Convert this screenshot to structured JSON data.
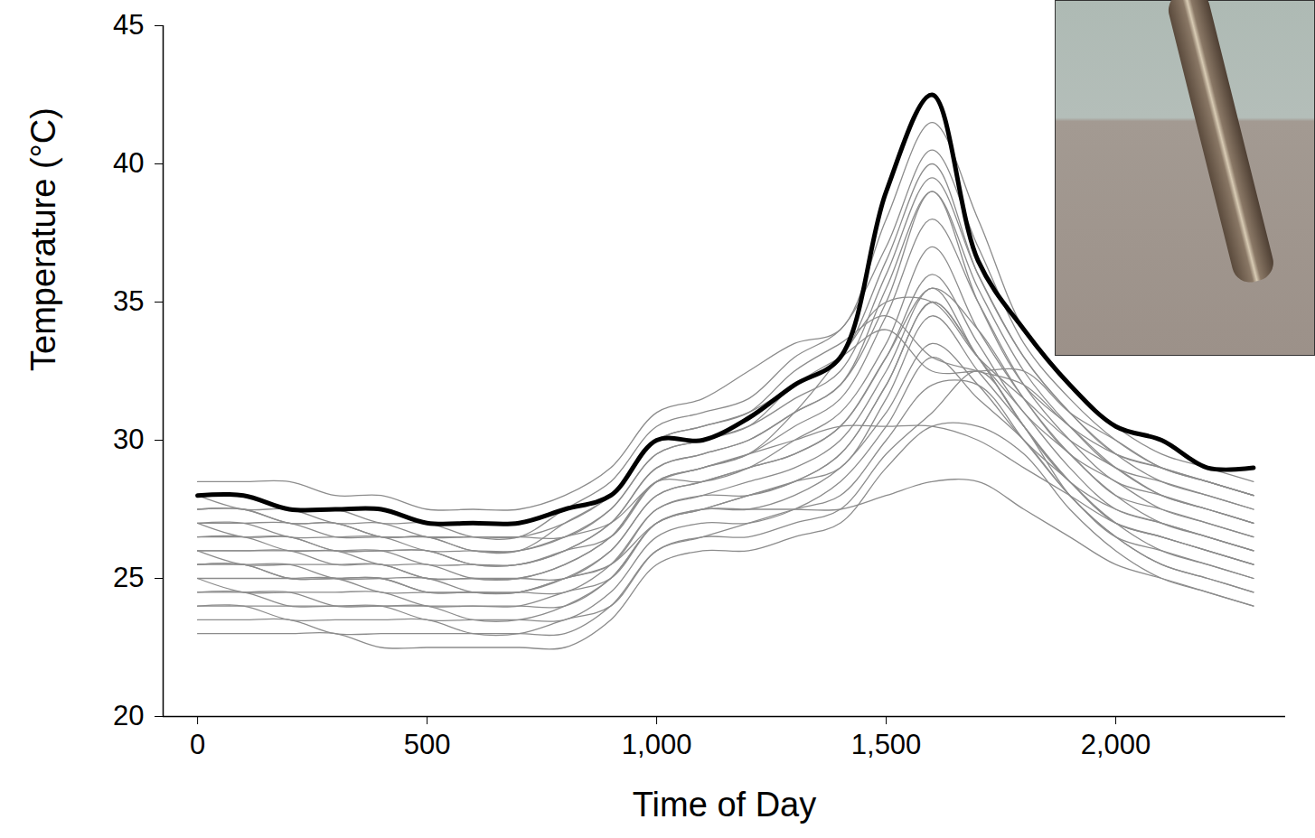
{
  "chart_data": {
    "type": "line",
    "x_label": "Time of Day",
    "y_label": "Temperature (°C)",
    "xlim": [
      -75,
      2370
    ],
    "ylim": [
      20,
      45
    ],
    "xticks": [
      0,
      500,
      1000,
      1500,
      2000
    ],
    "yticks": [
      20,
      25,
      30,
      35,
      40,
      45
    ],
    "x": [
      0,
      100,
      200,
      300,
      400,
      500,
      600,
      700,
      800,
      900,
      1000,
      1100,
      1200,
      1300,
      1400,
      1500,
      1600,
      1700,
      1800,
      1900,
      2000,
      2100,
      2200,
      2300
    ],
    "series": [
      {
        "color": "#8c8c8c",
        "line_style": "thin",
        "values": [
          28.5,
          28.5,
          28.5,
          28,
          28,
          27.5,
          27.5,
          27.5,
          28,
          29,
          31,
          31.5,
          32.5,
          33.5,
          34,
          38,
          41.5,
          38,
          34,
          32,
          30.5,
          29.5,
          29,
          28.5
        ]
      },
      {
        "color": "#8c8c8c",
        "line_style": "thin",
        "values": [
          28,
          28,
          27.5,
          27.5,
          27,
          27,
          26.5,
          26.5,
          27.5,
          28.5,
          30.5,
          31,
          31.5,
          33,
          34,
          37,
          40.5,
          37,
          33.5,
          31.5,
          30,
          29,
          28.5,
          28
        ]
      },
      {
        "color": "#8c8c8c",
        "line_style": "thin",
        "values": [
          27.5,
          27.5,
          27,
          27,
          26.5,
          26.5,
          26,
          26,
          27,
          28,
          30,
          30.5,
          31,
          32,
          33,
          36.5,
          40,
          36,
          33,
          31,
          29.5,
          28.5,
          28,
          27.5
        ]
      },
      {
        "color": "#8c8c8c",
        "line_style": "thin",
        "values": [
          27,
          27,
          27,
          26.5,
          26.5,
          26.5,
          26.5,
          26.5,
          26.5,
          27.5,
          29.5,
          30,
          30.5,
          31.5,
          32.5,
          36,
          39.5,
          36,
          33,
          31,
          29.5,
          29,
          28.5,
          28
        ]
      },
      {
        "color": "#8c8c8c",
        "line_style": "thin",
        "values": [
          26.5,
          26.5,
          26.5,
          26,
          26,
          26,
          25.5,
          25.5,
          26,
          27,
          29,
          29.5,
          30,
          31,
          32,
          35,
          39,
          35.5,
          32.5,
          30.5,
          29,
          28.5,
          28,
          27.5
        ]
      },
      {
        "color": "#8c8c8c",
        "line_style": "thin",
        "values": [
          26,
          26,
          26,
          26,
          26,
          25.5,
          25.5,
          25.5,
          26,
          26.5,
          28.5,
          29,
          29.5,
          30.5,
          31.5,
          34.5,
          38,
          35,
          32,
          30,
          28.5,
          28,
          27.5,
          27
        ]
      },
      {
        "color": "#8c8c8c",
        "line_style": "thin",
        "values": [
          26,
          25.5,
          25.5,
          25.5,
          25.5,
          25,
          25,
          25,
          25.5,
          26.5,
          28.5,
          28.5,
          29,
          30,
          31,
          33.5,
          37,
          34,
          31.5,
          29.5,
          28.5,
          27.5,
          27,
          26.5
        ]
      },
      {
        "color": "#8c8c8c",
        "line_style": "thin",
        "values": [
          25.5,
          25.5,
          25.5,
          25,
          25,
          25,
          24.5,
          24.5,
          25,
          26,
          28,
          28.5,
          29,
          29.5,
          30.5,
          33,
          36,
          33.5,
          31,
          29.5,
          28,
          27.5,
          27,
          26.5
        ]
      },
      {
        "color": "#8c8c8c",
        "line_style": "thin",
        "values": [
          25.5,
          25.5,
          25,
          25,
          25,
          24.5,
          24.5,
          24.5,
          25,
          25.5,
          27.5,
          28,
          28.5,
          29,
          30,
          32.5,
          35.5,
          33,
          31,
          29,
          27.5,
          27,
          26.5,
          26
        ]
      },
      {
        "color": "#8c8c8c",
        "line_style": "thin",
        "values": [
          25,
          25,
          25,
          25,
          24.5,
          24.5,
          24.5,
          24.5,
          24.5,
          25.5,
          27.5,
          28,
          28,
          28.5,
          29.5,
          32,
          35,
          33,
          30.5,
          28.5,
          27.5,
          27,
          26.5,
          26
        ]
      },
      {
        "color": "#8c8c8c",
        "line_style": "thin",
        "values": [
          25,
          24.5,
          24.5,
          24.5,
          24.5,
          24,
          24,
          24,
          24.5,
          25,
          27,
          27.5,
          28,
          28.5,
          29,
          31.5,
          34.5,
          32.5,
          30.5,
          28.5,
          27,
          26.5,
          26,
          25.5
        ]
      },
      {
        "color": "#8c8c8c",
        "line_style": "thin",
        "values": [
          24.5,
          24.5,
          24.5,
          24,
          24,
          24,
          24,
          24,
          24,
          25,
          27,
          27.5,
          27.5,
          28,
          29,
          31,
          33.5,
          32,
          30,
          28.5,
          27,
          26.5,
          26,
          25.5
        ]
      },
      {
        "color": "#8c8c8c",
        "line_style": "thin",
        "values": [
          24,
          24,
          24,
          24,
          24,
          23.5,
          23.5,
          23.5,
          23.5,
          24.5,
          26.5,
          27,
          27,
          27.5,
          28.5,
          30.5,
          33,
          31.5,
          30,
          28,
          26.5,
          26,
          25.5,
          25
        ]
      },
      {
        "color": "#8c8c8c",
        "line_style": "thin",
        "values": [
          24,
          24,
          23.5,
          23.5,
          23.5,
          23.5,
          23,
          23,
          23.5,
          24,
          26,
          26.5,
          27,
          27.5,
          28,
          30,
          32,
          32,
          30,
          28,
          26.5,
          25.5,
          25,
          24.5
        ]
      },
      {
        "color": "#8c8c8c",
        "line_style": "thin",
        "values": [
          23.5,
          23.5,
          23.5,
          23,
          23,
          23,
          23,
          23,
          23,
          24,
          26,
          26.5,
          26.5,
          27,
          27.5,
          29.5,
          31,
          32.5,
          30.5,
          28,
          26.5,
          25.5,
          25,
          24.5
        ]
      },
      {
        "color": "#8c8c8c",
        "line_style": "thin",
        "values": [
          23,
          23,
          23,
          23,
          22.5,
          22.5,
          22.5,
          22.5,
          22.5,
          23.5,
          25.5,
          26,
          26,
          26.5,
          27,
          29,
          30.5,
          30.5,
          29.5,
          27.5,
          26,
          25,
          24.5,
          24
        ]
      },
      {
        "color": "#8c8c8c",
        "line_style": "thin",
        "values": [
          25.5,
          25.5,
          25,
          25,
          25,
          24.5,
          24.5,
          24.5,
          25,
          25.5,
          27,
          27.5,
          27.5,
          27.5,
          27.5,
          28,
          28.5,
          28.5,
          27.5,
          26.5,
          25.5,
          25,
          24.5,
          24
        ]
      },
      {
        "color": "#8c8c8c",
        "line_style": "thin",
        "values": [
          27,
          27,
          26.5,
          26.5,
          26.5,
          26,
          26,
          26,
          26.5,
          27,
          28.5,
          29,
          29.5,
          30,
          30.5,
          30.5,
          30.5,
          30,
          29,
          28,
          27,
          26.5,
          26,
          25.5
        ]
      },
      {
        "color": "#8c8c8c",
        "line_style": "thin",
        "values": [
          26.5,
          26.5,
          26,
          26,
          25.5,
          25.5,
          25,
          25,
          25.5,
          26.5,
          28.5,
          29,
          29.5,
          31,
          33,
          35,
          35,
          33,
          31.5,
          30,
          29,
          28,
          27.5,
          27
        ]
      },
      {
        "color": "#8c8c8c",
        "line_style": "thin",
        "values": [
          28,
          27.5,
          27.5,
          27,
          27,
          26.5,
          26.5,
          26.5,
          27,
          28,
          30,
          30.5,
          31,
          32.5,
          33.5,
          34.5,
          33,
          32.5,
          32,
          30.5,
          29.5,
          29,
          28.5,
          28
        ]
      },
      {
        "color": "#8c8c8c",
        "line_style": "thin",
        "values": [
          27.5,
          27.5,
          27,
          27,
          26.5,
          26.5,
          26,
          26,
          26.5,
          27.5,
          29.5,
          30,
          30.5,
          32,
          33,
          34,
          32.5,
          32.5,
          32.5,
          31,
          30,
          29,
          28.5,
          28
        ]
      },
      {
        "color": "#8c8c8c",
        "line_style": "thin",
        "values": [
          26,
          26,
          26,
          25.5,
          25.5,
          25,
          25,
          25,
          25,
          26,
          28,
          28.5,
          29,
          29.5,
          30.5,
          33,
          35.5,
          34,
          31.5,
          29.5,
          28,
          27,
          26.5,
          26
        ]
      },
      {
        "color": "#8c8c8c",
        "line_style": "thin",
        "values": [
          27,
          26.5,
          26.5,
          26,
          26,
          26,
          25.5,
          25.5,
          26,
          27,
          29,
          29.5,
          30,
          31,
          32,
          35.5,
          39,
          35,
          32,
          30.5,
          29,
          28,
          27.5,
          27
        ]
      },
      {
        "color": "#8c8c8c",
        "line_style": "thin",
        "values": [
          24.5,
          24.5,
          24,
          24,
          24,
          24,
          23.5,
          23.5,
          24,
          25,
          27,
          27.5,
          28,
          28.5,
          29.5,
          32,
          35,
          33,
          30.5,
          28.5,
          27,
          26,
          25.5,
          25
        ]
      },
      {
        "color": "#000000",
        "line_style": "thick",
        "values": [
          28,
          28,
          27.5,
          27.5,
          27.5,
          27,
          27,
          27,
          27.5,
          28,
          30,
          30,
          30.8,
          32,
          33,
          39,
          42.5,
          36.5,
          34,
          32,
          30.5,
          30,
          29,
          29
        ]
      }
    ]
  }
}
